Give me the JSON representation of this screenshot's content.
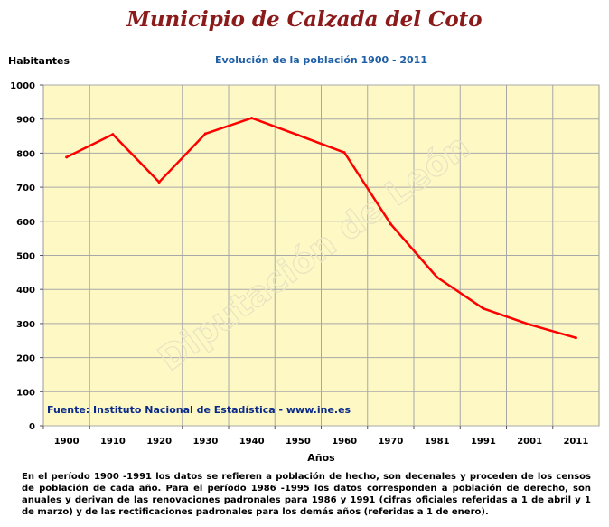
{
  "header": {
    "title": "Municipio de Calzada del Coto",
    "subtitle": "Evolución de la población 1900 - 2011",
    "y_unit": "Habitantes"
  },
  "source": "Fuente: Instituto Nacional de Estadística - www.ine.es",
  "watermark": "Diputación de León",
  "footnote": "En el período 1900 -1991 los datos se refieren a población de hecho, son decenales y proceden de los censos de población de cada año. Para el período 1986 -1995 los datos corresponden a población de derecho, son anuales y derivan de las renovaciones padronales para 1986 y 1991 (cifras oficiales referidas a 1 de abril y 1 de marzo) y de las rectificaciones padronales para los demás años (referidas a 1 de enero).",
  "colors": {
    "plot_background": "#fdf8c4",
    "line": "#ff0000",
    "grid": "#a8a8a8"
  },
  "chart_data": {
    "type": "line",
    "title": "Evolución de la población 1900 - 2011",
    "xlabel": "Años",
    "ylabel": "Habitantes",
    "categories": [
      "1900",
      "1910",
      "1920",
      "1930",
      "1940",
      "1950",
      "1960",
      "1970",
      "1981",
      "1991",
      "2001",
      "2011"
    ],
    "series": [
      {
        "values": [
          788,
          855,
          715,
          857,
          903,
          853,
          802,
          592,
          436,
          344,
          297,
          258
        ]
      }
    ],
    "ylim": [
      0,
      1000
    ],
    "yticks": [
      0,
      100,
      200,
      300,
      400,
      500,
      600,
      700,
      800,
      900,
      1000
    ],
    "grid": true,
    "legend": "none"
  }
}
